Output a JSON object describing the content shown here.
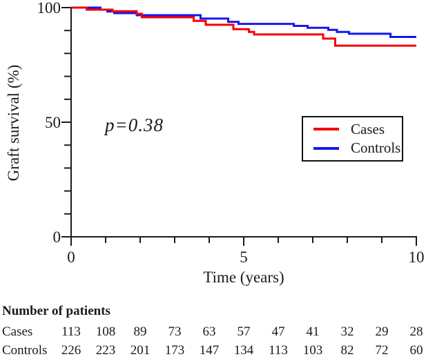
{
  "chart_data": {
    "type": "line",
    "subtype": "kaplan-meier-step",
    "title": "",
    "xlabel": "Time (years)",
    "ylabel": "Graft survival (%)",
    "xlim": [
      0,
      10
    ],
    "ylim": [
      0,
      100
    ],
    "x_major_ticks": [
      0,
      5,
      10
    ],
    "x_minor_step": 1,
    "y_major_ticks": [
      100,
      50,
      0
    ],
    "y_minor_step": 10,
    "grid": "off",
    "annotation": "p=0.38",
    "axis_color": "#1a1a1a",
    "legend": {
      "position": "middle-right",
      "entries": [
        {
          "name": "Cases",
          "color": "#f50000"
        },
        {
          "name": "Controls",
          "color": "#1616f0"
        }
      ]
    },
    "series": [
      {
        "name": "Controls",
        "color": "#1616f0",
        "steps": [
          [
            0,
            100
          ],
          [
            0.85,
            99.1
          ],
          [
            1.05,
            98.3
          ],
          [
            1.25,
            97.6
          ],
          [
            1.9,
            96.7
          ],
          [
            3.75,
            95.2
          ],
          [
            4.55,
            93.8
          ],
          [
            4.85,
            92.9
          ],
          [
            6.45,
            92.0
          ],
          [
            6.85,
            91.2
          ],
          [
            7.45,
            90.3
          ],
          [
            7.7,
            89.4
          ],
          [
            8.05,
            88.6
          ],
          [
            9.25,
            87.2
          ]
        ]
      },
      {
        "name": "Cases",
        "color": "#f50000",
        "steps": [
          [
            0,
            100
          ],
          [
            0.45,
            99.1
          ],
          [
            1.2,
            98.4
          ],
          [
            1.9,
            97.3
          ],
          [
            2.05,
            95.8
          ],
          [
            3.55,
            94.2
          ],
          [
            3.9,
            92.5
          ],
          [
            4.7,
            90.6
          ],
          [
            5.15,
            89.4
          ],
          [
            5.3,
            88.3
          ],
          [
            7.3,
            86.5
          ],
          [
            7.65,
            83.4
          ]
        ]
      }
    ]
  },
  "risk_table": {
    "title": "Number of patients",
    "times": [
      0,
      1,
      2,
      3,
      4,
      5,
      6,
      7,
      8,
      9,
      10
    ],
    "rows": [
      {
        "label": "Cases",
        "values": [
          113,
          108,
          89,
          73,
          63,
          57,
          47,
          41,
          32,
          29,
          28
        ]
      },
      {
        "label": "Controls",
        "values": [
          226,
          223,
          201,
          173,
          147,
          134,
          113,
          103,
          82,
          72,
          60
        ]
      }
    ]
  }
}
